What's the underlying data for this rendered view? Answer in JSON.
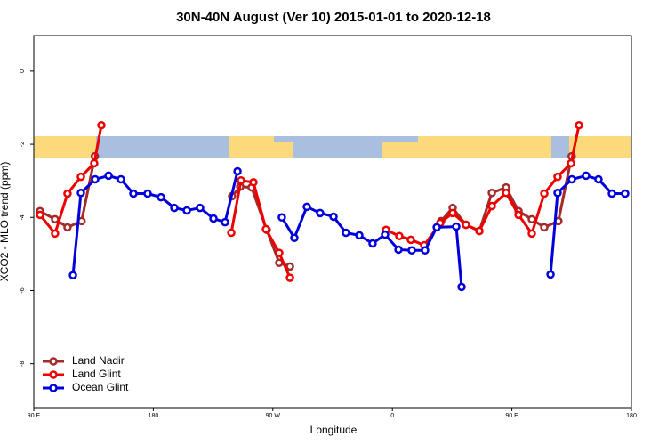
{
  "chart_data": {
    "type": "line",
    "title": "30N-40N August (Ver 10)   2015-01-01 to 2020-12-18",
    "x_label": "Longitude",
    "y_label": "XCO2 - MLO trend (ppm)",
    "xlim": [
      90,
      540
    ],
    "xticks": [
      {
        "value": 90,
        "label": "90 E"
      },
      180,
      {
        "value": 270,
        "label": "90 W"
      },
      {
        "value": 360,
        "label": "0"
      },
      {
        "value": 450,
        "label": "90 E"
      },
      {
        "value": 540,
        "label": "180"
      }
    ],
    "ylim": [
      -9.2,
      0.97
    ],
    "yticks": [
      0,
      -2,
      -4,
      -6,
      -8
    ],
    "legend": "bottomleft",
    "series": [
      {
        "name": "Land Nadir",
        "color": "#a52a2a",
        "x": [
          94.7,
          106,
          115.4,
          126,
          136,
          null,
          239.3,
          245.4,
          254,
          265.4,
          274.8,
          282.9,
          null,
          396.7,
          405.4,
          415.4,
          425.5,
          434.9,
          445.6,
          455,
          465,
          474.4,
          485,
          495
        ],
        "values": [
          -3.83,
          -4.05,
          -4.27,
          -4.1,
          -2.33,
          null,
          -3.42,
          -3.16,
          -3.18,
          -4.34,
          -5.24,
          -5.34,
          null,
          -4.1,
          -3.74,
          -4.2,
          -4.37,
          -3.33,
          -3.18,
          -3.83,
          -4.05,
          -4.27,
          -4.1,
          -2.33
        ]
      },
      {
        "name": "Land Glint",
        "color": "#ee0000",
        "x": [
          94.7,
          106,
          115.4,
          125.5,
          135.5,
          140.9,
          null,
          238.7,
          246,
          255.4,
          264.8,
          274.8,
          282.9,
          null,
          355.2,
          365.2,
          373.9,
          384,
          396,
          405.4,
          415.4,
          425.5,
          434.9,
          445.6,
          455,
          465,
          474.4,
          484.4,
          494.5,
          500.5
        ],
        "values": [
          -3.93,
          -4.44,
          -3.35,
          -2.89,
          -2.52,
          -1.48,
          null,
          -4.42,
          -2.99,
          -3.04,
          -4.32,
          -4.97,
          -5.65,
          null,
          -4.34,
          -4.51,
          -4.61,
          -4.76,
          -4.15,
          -3.88,
          -4.2,
          -4.37,
          -3.69,
          -3.33,
          -3.93,
          -4.44,
          -3.35,
          -2.89,
          -2.52,
          -1.48
        ]
      },
      {
        "name": "Ocean Glint",
        "color": "#0000dd",
        "x": [
          119.5,
          125.5,
          136.2,
          146.3,
          155.6,
          165,
          175.7,
          185.8,
          195.8,
          205.2,
          215.2,
          225.3,
          234,
          243.4,
          null,
          276.8,
          286.2,
          295.6,
          305.6,
          315.7,
          325,
          335.1,
          345.1,
          354.5,
          364.6,
          374.6,
          384.6,
          393.4,
          408.1,
          412.1,
          null,
          479.1,
          484.4,
          495.1,
          505.8,
          515.2,
          525.3,
          535.3
        ],
        "values": [
          -5.58,
          -3.33,
          -2.96,
          -2.86,
          -2.96,
          -3.35,
          -3.35,
          -3.45,
          -3.74,
          -3.81,
          -3.74,
          -4.03,
          -4.13,
          -2.74,
          null,
          -4.0,
          -4.56,
          -3.71,
          -3.88,
          -3.98,
          -4.42,
          -4.49,
          -4.71,
          -4.47,
          -4.88,
          -4.9,
          -4.9,
          -4.27,
          -4.25,
          -5.9,
          null,
          -5.56,
          -3.33,
          -2.96,
          -2.86,
          -2.96,
          -3.35,
          -3.35
        ]
      }
    ]
  }
}
